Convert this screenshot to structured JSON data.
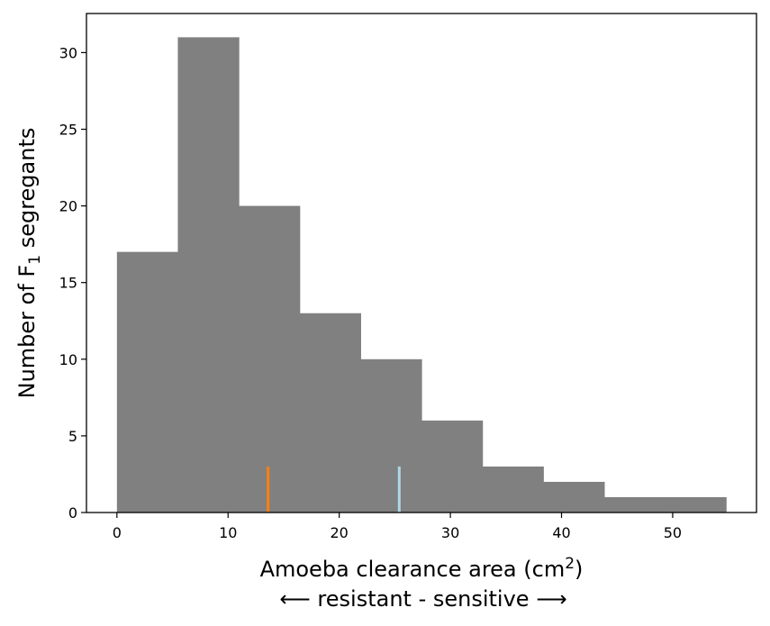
{
  "chart_data": {
    "type": "bar",
    "subtype": "histogram",
    "bins": [
      {
        "start": 0.0,
        "end": 5.48,
        "count": 17
      },
      {
        "start": 5.48,
        "end": 10.96,
        "count": 31
      },
      {
        "start": 10.96,
        "end": 16.44,
        "count": 20
      },
      {
        "start": 16.44,
        "end": 21.92,
        "count": 13
      },
      {
        "start": 21.92,
        "end": 27.4,
        "count": 10
      },
      {
        "start": 27.4,
        "end": 32.88,
        "count": 6
      },
      {
        "start": 32.88,
        "end": 38.36,
        "count": 3
      },
      {
        "start": 38.36,
        "end": 43.84,
        "count": 2
      },
      {
        "start": 43.84,
        "end": 49.32,
        "count": 1
      },
      {
        "start": 49.32,
        "end": 54.8,
        "count": 1
      }
    ],
    "markers": [
      {
        "x": 13.6,
        "height": 3,
        "color": "#ff7f0e"
      },
      {
        "x": 25.4,
        "height": 3,
        "color": "#add8e6"
      }
    ],
    "bar_color": "#808080",
    "xlim": [
      -2.74,
      57.54
    ],
    "ylim": [
      0,
      32.55
    ],
    "xticks": [
      0,
      10,
      20,
      30,
      40,
      50
    ],
    "yticks": [
      0,
      5,
      10,
      15,
      20,
      25,
      30
    ],
    "xlabel_main": "Amoeba clearance area (cm",
    "xlabel_sup": "2",
    "xlabel_end": ")",
    "xlabel_line2": "⟵ resistant - sensitive ⟶",
    "ylabel_main": "Number of F",
    "ylabel_sub": "1",
    "ylabel_end": " segregants",
    "grid": false,
    "legend": "none"
  }
}
